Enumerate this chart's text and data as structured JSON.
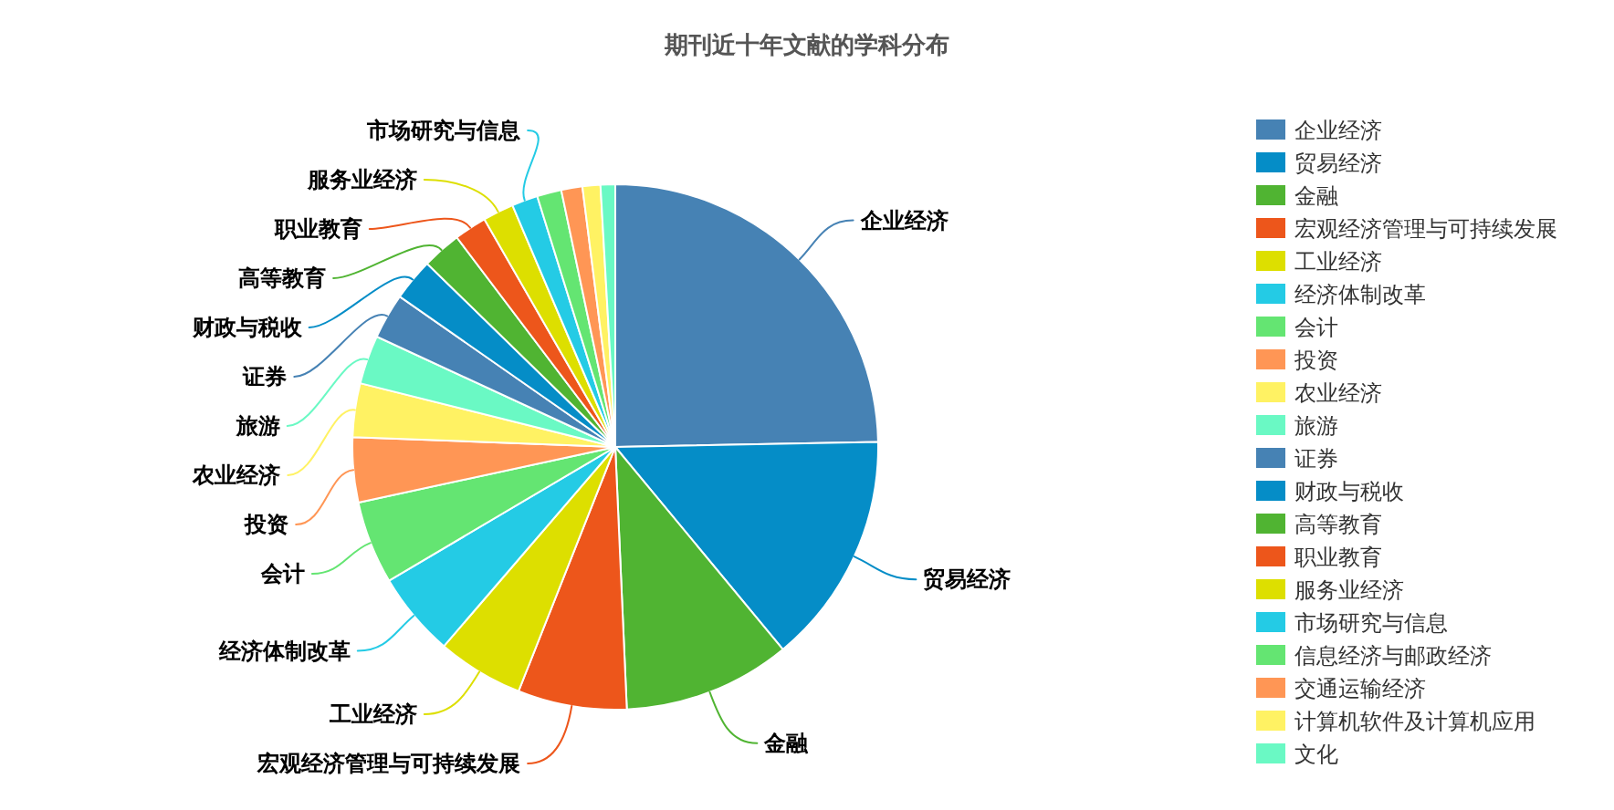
{
  "chart_data": {
    "type": "pie",
    "title": "期刊近十年文献的学科分布",
    "categories": [
      "企业经济",
      "贸易经济",
      "金融",
      "宏观经济管理与可持续发展",
      "工业经济",
      "经济体制改革",
      "会计",
      "投资",
      "农业经济",
      "旅游",
      "证券",
      "财政与税收",
      "高等教育",
      "职业教育",
      "服务业经济",
      "市场研究与信息",
      "信息经济与邮政经济",
      "交通运输经济",
      "计算机软件及计算机应用",
      "文化"
    ],
    "values": [
      24.7,
      14.3,
      10.3,
      6.7,
      5.3,
      5.2,
      5.1,
      4.0,
      3.3,
      3.0,
      2.8,
      2.6,
      2.4,
      2.0,
      1.9,
      1.6,
      1.5,
      1.3,
      1.1,
      0.9
    ],
    "colors": [
      "#4682b4",
      "#058dc7",
      "#50b432",
      "#ed561b",
      "#dddf00",
      "#24cbe5",
      "#64e572",
      "#ff9655",
      "#fff263",
      "#6af9c4",
      "#4682b4",
      "#058dc7",
      "#50b432",
      "#ed561b",
      "#dddf00",
      "#24cbe5",
      "#64e572",
      "#ff9655",
      "#fff263",
      "#6af9c4"
    ],
    "legend": "right"
  }
}
